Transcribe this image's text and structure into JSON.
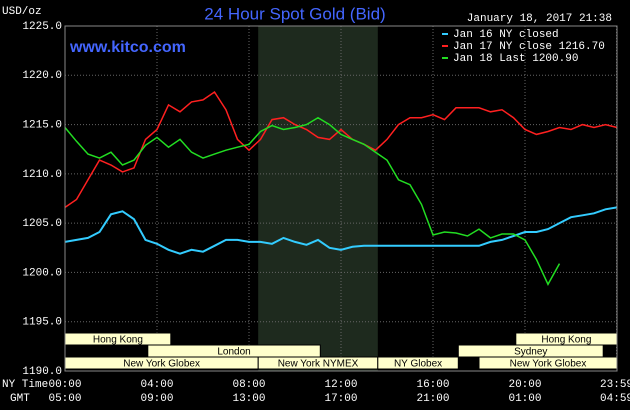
{
  "chart_data": {
    "type": "line",
    "title": "24 Hour Spot Gold (Bid)",
    "timestamp": "January 18, 2017 21:38",
    "watermark": "www.kitco.com",
    "y_unit_label": "USD/oz",
    "x_label_ny": "NY Time",
    "x_label_gmt": "GMT",
    "xlim": [
      0,
      24
    ],
    "ylim": [
      1190,
      1225
    ],
    "yticks": [
      {
        "value": 1190,
        "label": "1190.0"
      },
      {
        "value": 1195,
        "label": "1195.0"
      },
      {
        "value": 1200,
        "label": "1200.0"
      },
      {
        "value": 1205,
        "label": "1205.0"
      },
      {
        "value": 1210,
        "label": "1210.0"
      },
      {
        "value": 1215,
        "label": "1215.0"
      },
      {
        "value": 1220,
        "label": "1220.0"
      },
      {
        "value": 1225,
        "label": "1225.0"
      }
    ],
    "xticks": [
      {
        "value": 0,
        "label": "00:00"
      },
      {
        "value": 4,
        "label": "04:00"
      },
      {
        "value": 8,
        "label": "08:00"
      },
      {
        "value": 12,
        "label": "12:00"
      },
      {
        "value": 16,
        "label": "16:00"
      },
      {
        "value": 20,
        "label": "20:00"
      },
      {
        "value": 23.98,
        "label": "23:59"
      }
    ],
    "xticks_gmt": [
      "05:00",
      "09:00",
      "13:00",
      "17:00",
      "21:00",
      "01:00",
      "04:59"
    ],
    "grid": true,
    "shaded": {
      "start": 8.4,
      "end": 13.6
    },
    "session_rows": [
      [
        {
          "label": "Hong Kong",
          "start": 0,
          "end": 4.6
        },
        {
          "label": "Hong Kong",
          "start": 19.6,
          "end": 24
        }
      ],
      [
        {
          "label": "London",
          "start": 3.6,
          "end": 11.1
        },
        {
          "label": "Sydney",
          "start": 17.1,
          "end": 23.4
        }
      ],
      [
        {
          "label": "New York Globex",
          "start": 0,
          "end": 8.4
        },
        {
          "label": "New York NYMEX",
          "start": 8.4,
          "end": 13.6
        },
        {
          "label": "NY Globex",
          "start": 13.6,
          "end": 17.1
        },
        {
          "label": "New York Globex",
          "start": 18.0,
          "end": 24
        }
      ]
    ],
    "x": [
      0,
      0.5,
      1,
      1.5,
      2,
      2.5,
      3,
      3.5,
      4,
      4.5,
      5,
      5.5,
      6,
      6.5,
      7,
      7.5,
      8,
      8.5,
      9,
      9.5,
      10,
      10.5,
      11,
      11.5,
      12,
      12.5,
      13,
      13.5,
      14,
      14.5,
      15,
      15.5,
      16,
      16.5,
      17,
      17.5,
      18,
      18.5,
      19,
      19.5,
      20,
      20.5,
      21,
      21.5,
      22,
      22.5,
      23,
      23.5,
      24
    ],
    "series": [
      {
        "name": "Jan 16 NY closed",
        "color": "#33ccff",
        "values": [
          1203.1,
          1203.3,
          1203.5,
          1204.1,
          1205.9,
          1206.2,
          1205.4,
          1203.3,
          1202.9,
          1202.3,
          1201.9,
          1202.3,
          1202.1,
          1202.7,
          1203.3,
          1203.3,
          1203.1,
          1203.1,
          1202.9,
          1203.5,
          1203.1,
          1202.8,
          1203.3,
          1202.5,
          1202.3,
          1202.6,
          1202.7,
          1202.7,
          1202.7,
          1202.7,
          1202.7,
          1202.7,
          1202.7,
          1202.7,
          1202.7,
          1202.7,
          1202.7,
          1203.1,
          1203.3,
          1203.7,
          1204.1,
          1204.1,
          1204.4,
          1205.0,
          1205.6,
          1205.8,
          1206.0,
          1206.4,
          1206.6
        ]
      },
      {
        "name": "Jan 17 NY close 1216.70",
        "color": "#ff2020",
        "values": [
          1206.6,
          1207.4,
          1209.4,
          1211.4,
          1210.9,
          1210.2,
          1210.6,
          1213.5,
          1214.5,
          1217.0,
          1216.3,
          1217.3,
          1217.5,
          1218.3,
          1216.5,
          1213.5,
          1212.4,
          1213.5,
          1215.5,
          1215.7,
          1215.0,
          1214.5,
          1213.7,
          1213.5,
          1214.5,
          1213.5,
          1213.0,
          1212.4,
          1213.5,
          1215.0,
          1215.7,
          1215.7,
          1216.0,
          1215.5,
          1216.7,
          1216.7,
          1216.7,
          1216.3,
          1216.5,
          1215.7,
          1214.5,
          1214.0,
          1214.3,
          1214.7,
          1214.5,
          1215.0,
          1214.7,
          1215.0,
          1214.7
        ]
      },
      {
        "name": "Jan 18 Last 1200.90",
        "color": "#22dd22",
        "values": [
          1214.7,
          1213.3,
          1212.0,
          1211.6,
          1212.2,
          1210.9,
          1211.4,
          1212.9,
          1213.7,
          1212.7,
          1213.5,
          1212.2,
          1211.6,
          1212.0,
          1212.4,
          1212.7,
          1213.0,
          1214.3,
          1214.9,
          1214.5,
          1214.7,
          1215.0,
          1215.7,
          1215.0,
          1214.0,
          1213.5,
          1213.0,
          1212.2,
          1211.4,
          1209.4,
          1208.9,
          1206.9,
          1203.8,
          1204.1,
          1204.0,
          1203.7,
          1204.4,
          1203.5,
          1203.9,
          1203.9,
          1203.3,
          1201.3,
          1198.8,
          1200.9,
          null,
          null,
          null,
          null,
          null
        ]
      }
    ]
  }
}
